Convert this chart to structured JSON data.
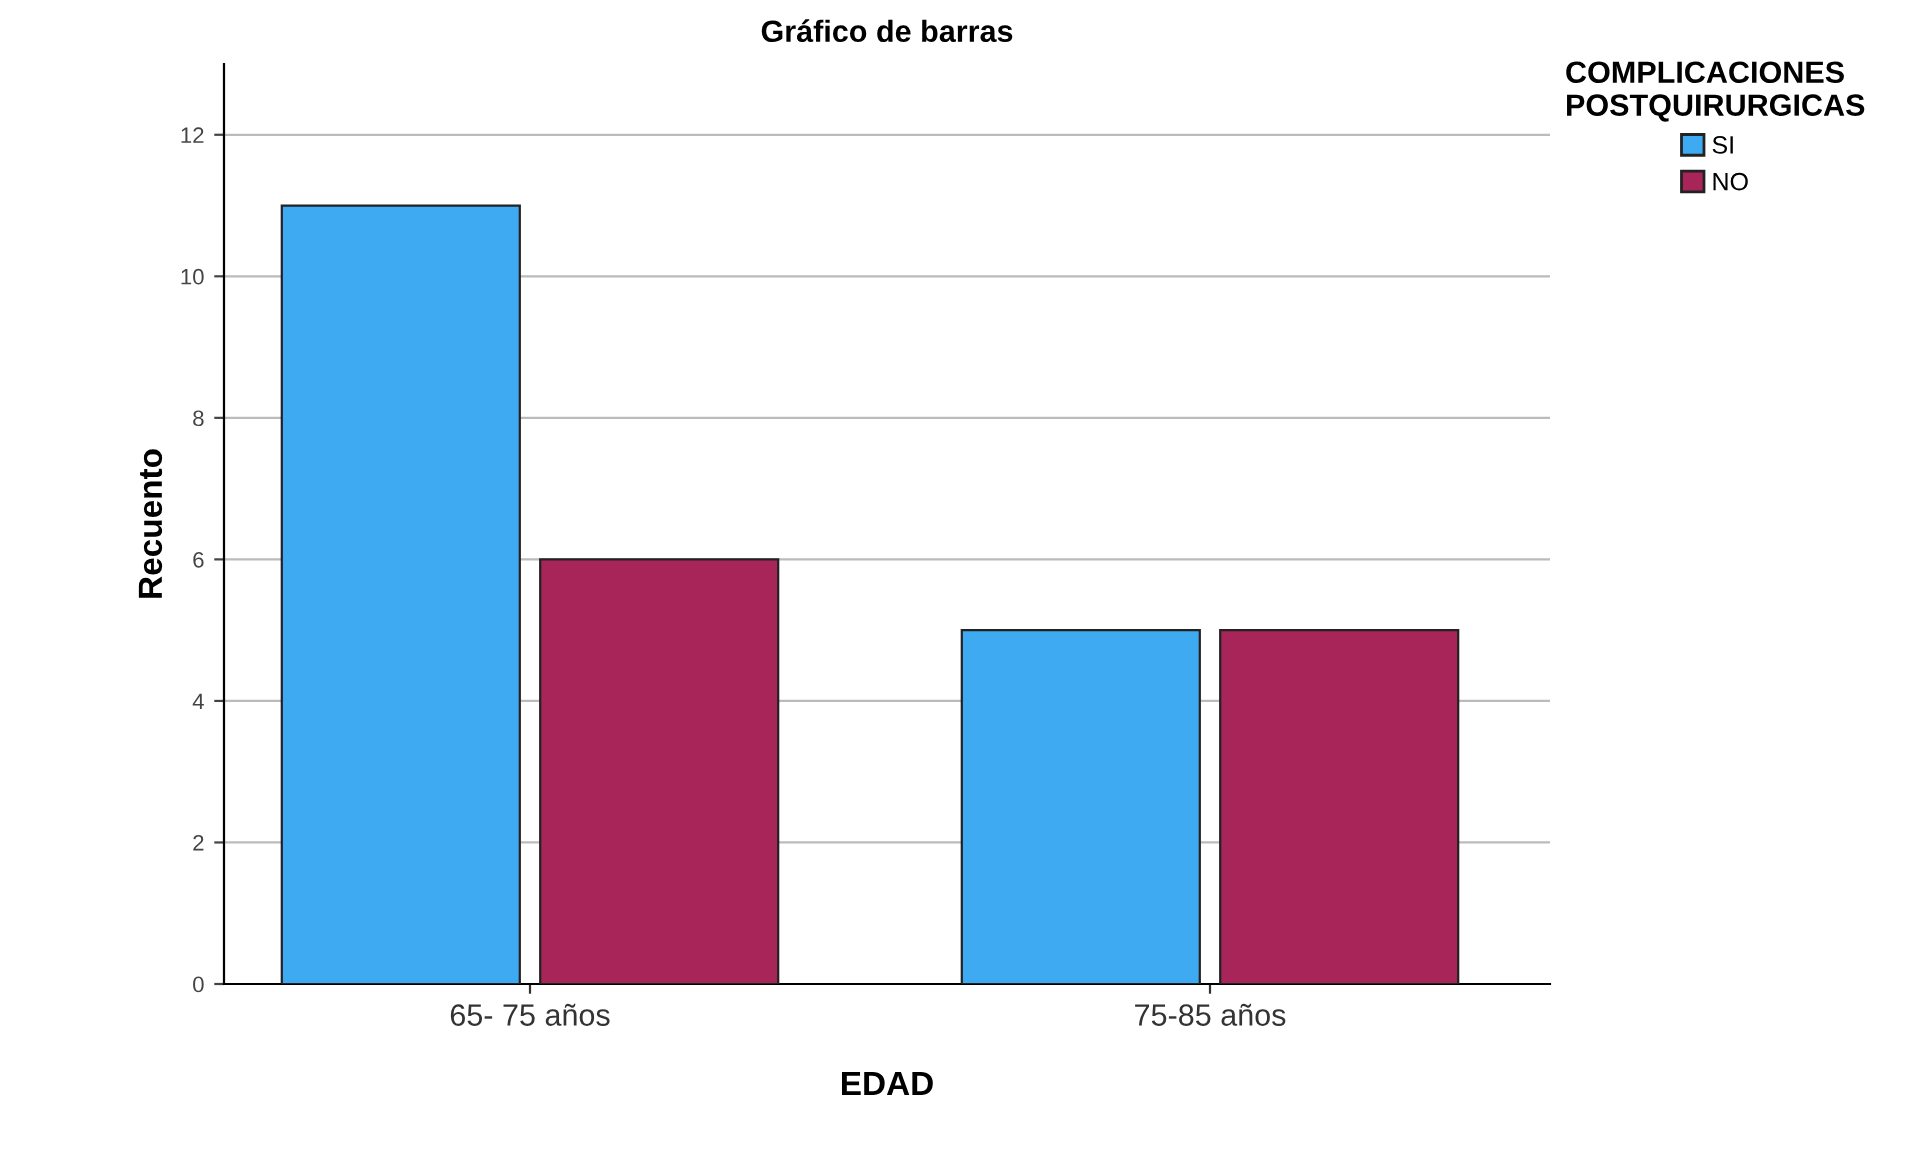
{
  "chart_data": {
    "type": "bar",
    "title": "Gráfico de barras",
    "xlabel": "EDAD",
    "ylabel": "Recuento",
    "legend_title": "COMPLICACIONES\nPOSTQUIRURGICAS",
    "categories": [
      "65- 75 años",
      "75-85 años"
    ],
    "series": [
      {
        "name": "SI",
        "color": "#3eaaf2",
        "values": [
          11,
          5
        ]
      },
      {
        "name": "NO",
        "color": "#a8255a",
        "values": [
          6,
          5
        ]
      }
    ],
    "ylim": [
      0,
      13
    ],
    "yticks": [
      0,
      2,
      4,
      6,
      8,
      10,
      12
    ],
    "grid": "y",
    "legend": "top right"
  }
}
